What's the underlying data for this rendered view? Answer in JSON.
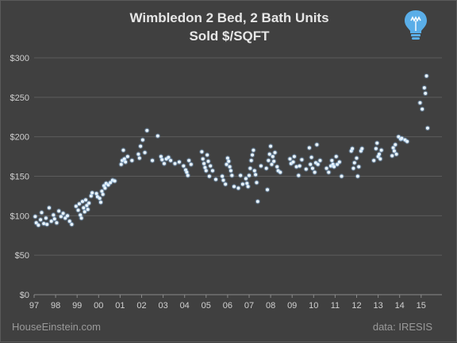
{
  "chart_data": {
    "type": "scatter",
    "title": "Wimbledon 2 Bed, 2 Bath Units",
    "subtitle": "Sold $/SQFT",
    "x_tick_labels": [
      "97",
      "98",
      "99",
      "00",
      "01",
      "02",
      "03",
      "04",
      "05",
      "06",
      "07",
      "08",
      "09",
      "10",
      "11",
      "12",
      "13",
      "14",
      "15"
    ],
    "y_tick_labels": [
      "$0",
      "$50",
      "$100",
      "$150",
      "$200",
      "$250",
      "$300"
    ],
    "ylim": [
      0,
      300
    ],
    "xlim": [
      1997,
      2015.7
    ],
    "grid": true,
    "marker_color": "#8ec8ff",
    "points": [
      [
        1997.05,
        99
      ],
      [
        1997.1,
        91
      ],
      [
        1997.2,
        88
      ],
      [
        1997.3,
        95
      ],
      [
        1997.35,
        104
      ],
      [
        1997.45,
        90
      ],
      [
        1997.55,
        97
      ],
      [
        1997.6,
        89
      ],
      [
        1997.7,
        110
      ],
      [
        1997.8,
        93
      ],
      [
        1997.9,
        101
      ],
      [
        1997.95,
        96
      ],
      [
        1998.05,
        91
      ],
      [
        1998.15,
        106
      ],
      [
        1998.25,
        99
      ],
      [
        1998.35,
        103
      ],
      [
        1998.45,
        97
      ],
      [
        1998.55,
        100
      ],
      [
        1998.65,
        93
      ],
      [
        1998.75,
        89
      ],
      [
        1998.95,
        112
      ],
      [
        1999.05,
        107
      ],
      [
        1999.1,
        115
      ],
      [
        1999.15,
        101
      ],
      [
        1999.2,
        97
      ],
      [
        1999.25,
        118
      ],
      [
        1999.3,
        110
      ],
      [
        1999.35,
        105
      ],
      [
        1999.4,
        120
      ],
      [
        1999.45,
        113
      ],
      [
        1999.5,
        108
      ],
      [
        1999.55,
        116
      ],
      [
        1999.65,
        125
      ],
      [
        1999.7,
        129
      ],
      [
        1999.9,
        128
      ],
      [
        1999.95,
        124
      ],
      [
        2000.05,
        122
      ],
      [
        2000.1,
        117
      ],
      [
        2000.15,
        131
      ],
      [
        2000.2,
        127
      ],
      [
        2000.25,
        138
      ],
      [
        2000.3,
        135
      ],
      [
        2000.35,
        141
      ],
      [
        2000.45,
        139
      ],
      [
        2000.55,
        142
      ],
      [
        2000.65,
        145
      ],
      [
        2000.75,
        144
      ],
      [
        2001.05,
        165
      ],
      [
        2001.1,
        170
      ],
      [
        2001.15,
        183
      ],
      [
        2001.2,
        172
      ],
      [
        2001.25,
        168
      ],
      [
        2001.35,
        175
      ],
      [
        2001.55,
        170
      ],
      [
        2001.85,
        178
      ],
      [
        2001.9,
        173
      ],
      [
        2001.95,
        188
      ],
      [
        2002.05,
        196
      ],
      [
        2002.15,
        180
      ],
      [
        2002.25,
        208
      ],
      [
        2002.5,
        170
      ],
      [
        2002.75,
        201
      ],
      [
        2002.9,
        175
      ],
      [
        2002.95,
        171
      ],
      [
        2003.05,
        166
      ],
      [
        2003.15,
        172
      ],
      [
        2003.25,
        174
      ],
      [
        2003.35,
        170
      ],
      [
        2003.55,
        166
      ],
      [
        2003.75,
        168
      ],
      [
        2003.95,
        163
      ],
      [
        2004.05,
        158
      ],
      [
        2004.1,
        155
      ],
      [
        2004.15,
        151
      ],
      [
        2004.2,
        170
      ],
      [
        2004.3,
        165
      ],
      [
        2004.8,
        181
      ],
      [
        2004.85,
        172
      ],
      [
        2004.9,
        166
      ],
      [
        2004.95,
        161
      ],
      [
        2005.0,
        157
      ],
      [
        2005.05,
        177
      ],
      [
        2005.1,
        169
      ],
      [
        2005.15,
        150
      ],
      [
        2005.2,
        163
      ],
      [
        2005.3,
        157
      ],
      [
        2005.45,
        146
      ],
      [
        2005.75,
        150
      ],
      [
        2005.8,
        145
      ],
      [
        2005.9,
        140
      ],
      [
        2005.95,
        165
      ],
      [
        2006.0,
        173
      ],
      [
        2006.05,
        169
      ],
      [
        2006.1,
        162
      ],
      [
        2006.15,
        157
      ],
      [
        2006.2,
        151
      ],
      [
        2006.3,
        137
      ],
      [
        2006.5,
        135
      ],
      [
        2006.6,
        151
      ],
      [
        2006.7,
        140
      ],
      [
        2006.85,
        147
      ],
      [
        2006.9,
        141
      ],
      [
        2006.95,
        137
      ],
      [
        2007.0,
        151
      ],
      [
        2007.05,
        160
      ],
      [
        2007.1,
        170
      ],
      [
        2007.15,
        177
      ],
      [
        2007.2,
        183
      ],
      [
        2007.25,
        157
      ],
      [
        2007.3,
        152
      ],
      [
        2007.35,
        142
      ],
      [
        2007.4,
        118
      ],
      [
        2007.55,
        163
      ],
      [
        2007.8,
        160
      ],
      [
        2007.85,
        133
      ],
      [
        2007.9,
        170
      ],
      [
        2007.95,
        178
      ],
      [
        2008.0,
        188
      ],
      [
        2008.05,
        165
      ],
      [
        2008.1,
        175
      ],
      [
        2008.15,
        169
      ],
      [
        2008.2,
        180
      ],
      [
        2008.3,
        162
      ],
      [
        2008.35,
        157
      ],
      [
        2008.45,
        155
      ],
      [
        2008.9,
        172
      ],
      [
        2008.95,
        166
      ],
      [
        2009.05,
        168
      ],
      [
        2009.1,
        175
      ],
      [
        2009.2,
        162
      ],
      [
        2009.3,
        151
      ],
      [
        2009.35,
        163
      ],
      [
        2009.45,
        171
      ],
      [
        2009.65,
        159
      ],
      [
        2009.8,
        186
      ],
      [
        2009.85,
        165
      ],
      [
        2009.9,
        174
      ],
      [
        2009.95,
        160
      ],
      [
        2010.05,
        155
      ],
      [
        2010.1,
        167
      ],
      [
        2010.15,
        190
      ],
      [
        2010.2,
        165
      ],
      [
        2010.3,
        170
      ],
      [
        2010.6,
        160
      ],
      [
        2010.7,
        155
      ],
      [
        2010.8,
        163
      ],
      [
        2010.85,
        170
      ],
      [
        2010.9,
        165
      ],
      [
        2010.95,
        162
      ],
      [
        2011.05,
        175
      ],
      [
        2011.1,
        165
      ],
      [
        2011.2,
        168
      ],
      [
        2011.3,
        150
      ],
      [
        2011.75,
        182
      ],
      [
        2011.8,
        185
      ],
      [
        2011.85,
        160
      ],
      [
        2011.9,
        167
      ],
      [
        2012.0,
        173
      ],
      [
        2012.05,
        150
      ],
      [
        2012.1,
        162
      ],
      [
        2012.2,
        182
      ],
      [
        2012.25,
        185
      ],
      [
        2012.8,
        170
      ],
      [
        2012.9,
        185
      ],
      [
        2012.95,
        192
      ],
      [
        2013.0,
        175
      ],
      [
        2013.05,
        178
      ],
      [
        2013.1,
        172
      ],
      [
        2013.15,
        183
      ],
      [
        2013.65,
        176
      ],
      [
        2013.7,
        186
      ],
      [
        2013.75,
        182
      ],
      [
        2013.8,
        190
      ],
      [
        2013.85,
        178
      ],
      [
        2013.95,
        200
      ],
      [
        2014.05,
        197
      ],
      [
        2014.1,
        198
      ],
      [
        2014.25,
        196
      ],
      [
        2014.35,
        194
      ],
      [
        2014.95,
        243
      ],
      [
        2015.05,
        235
      ],
      [
        2015.15,
        262
      ],
      [
        2015.2,
        255
      ],
      [
        2015.25,
        277
      ],
      [
        2015.3,
        211
      ]
    ]
  },
  "logo": {
    "name": "lightbulb-logo",
    "color": "#5aaee8"
  },
  "footer": {
    "left": "HouseEinstein.com",
    "right": "data:  IRESIS"
  }
}
